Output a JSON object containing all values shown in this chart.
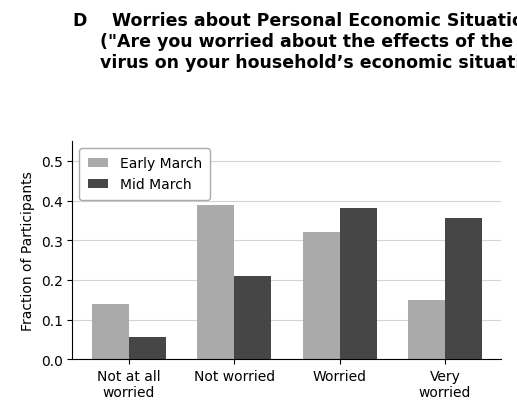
{
  "categories": [
    "Not at all\nworried",
    "Not worried",
    "Worried",
    "Very\nworried"
  ],
  "early_march": [
    0.14,
    0.39,
    0.32,
    0.15
  ],
  "mid_march": [
    0.055,
    0.21,
    0.38,
    0.355
  ],
  "early_color": "#aaaaaa",
  "mid_color": "#464646",
  "ylabel": "Fraction of Participants",
  "ylim": [
    0,
    0.55
  ],
  "yticks": [
    0.0,
    0.1,
    0.2,
    0.3,
    0.4,
    0.5
  ],
  "legend_labels": [
    "Early March",
    "Mid March"
  ],
  "bar_width": 0.35,
  "title_D": "D",
  "title_rest": "  Worries about Personal Economic Situation\n(\"Are you worried about the effects of the corona-\nvirus on your household’s economic situation?\")",
  "background_color": "#ffffff",
  "title_fontsize": 12.5,
  "axis_fontsize": 10,
  "legend_fontsize": 10
}
